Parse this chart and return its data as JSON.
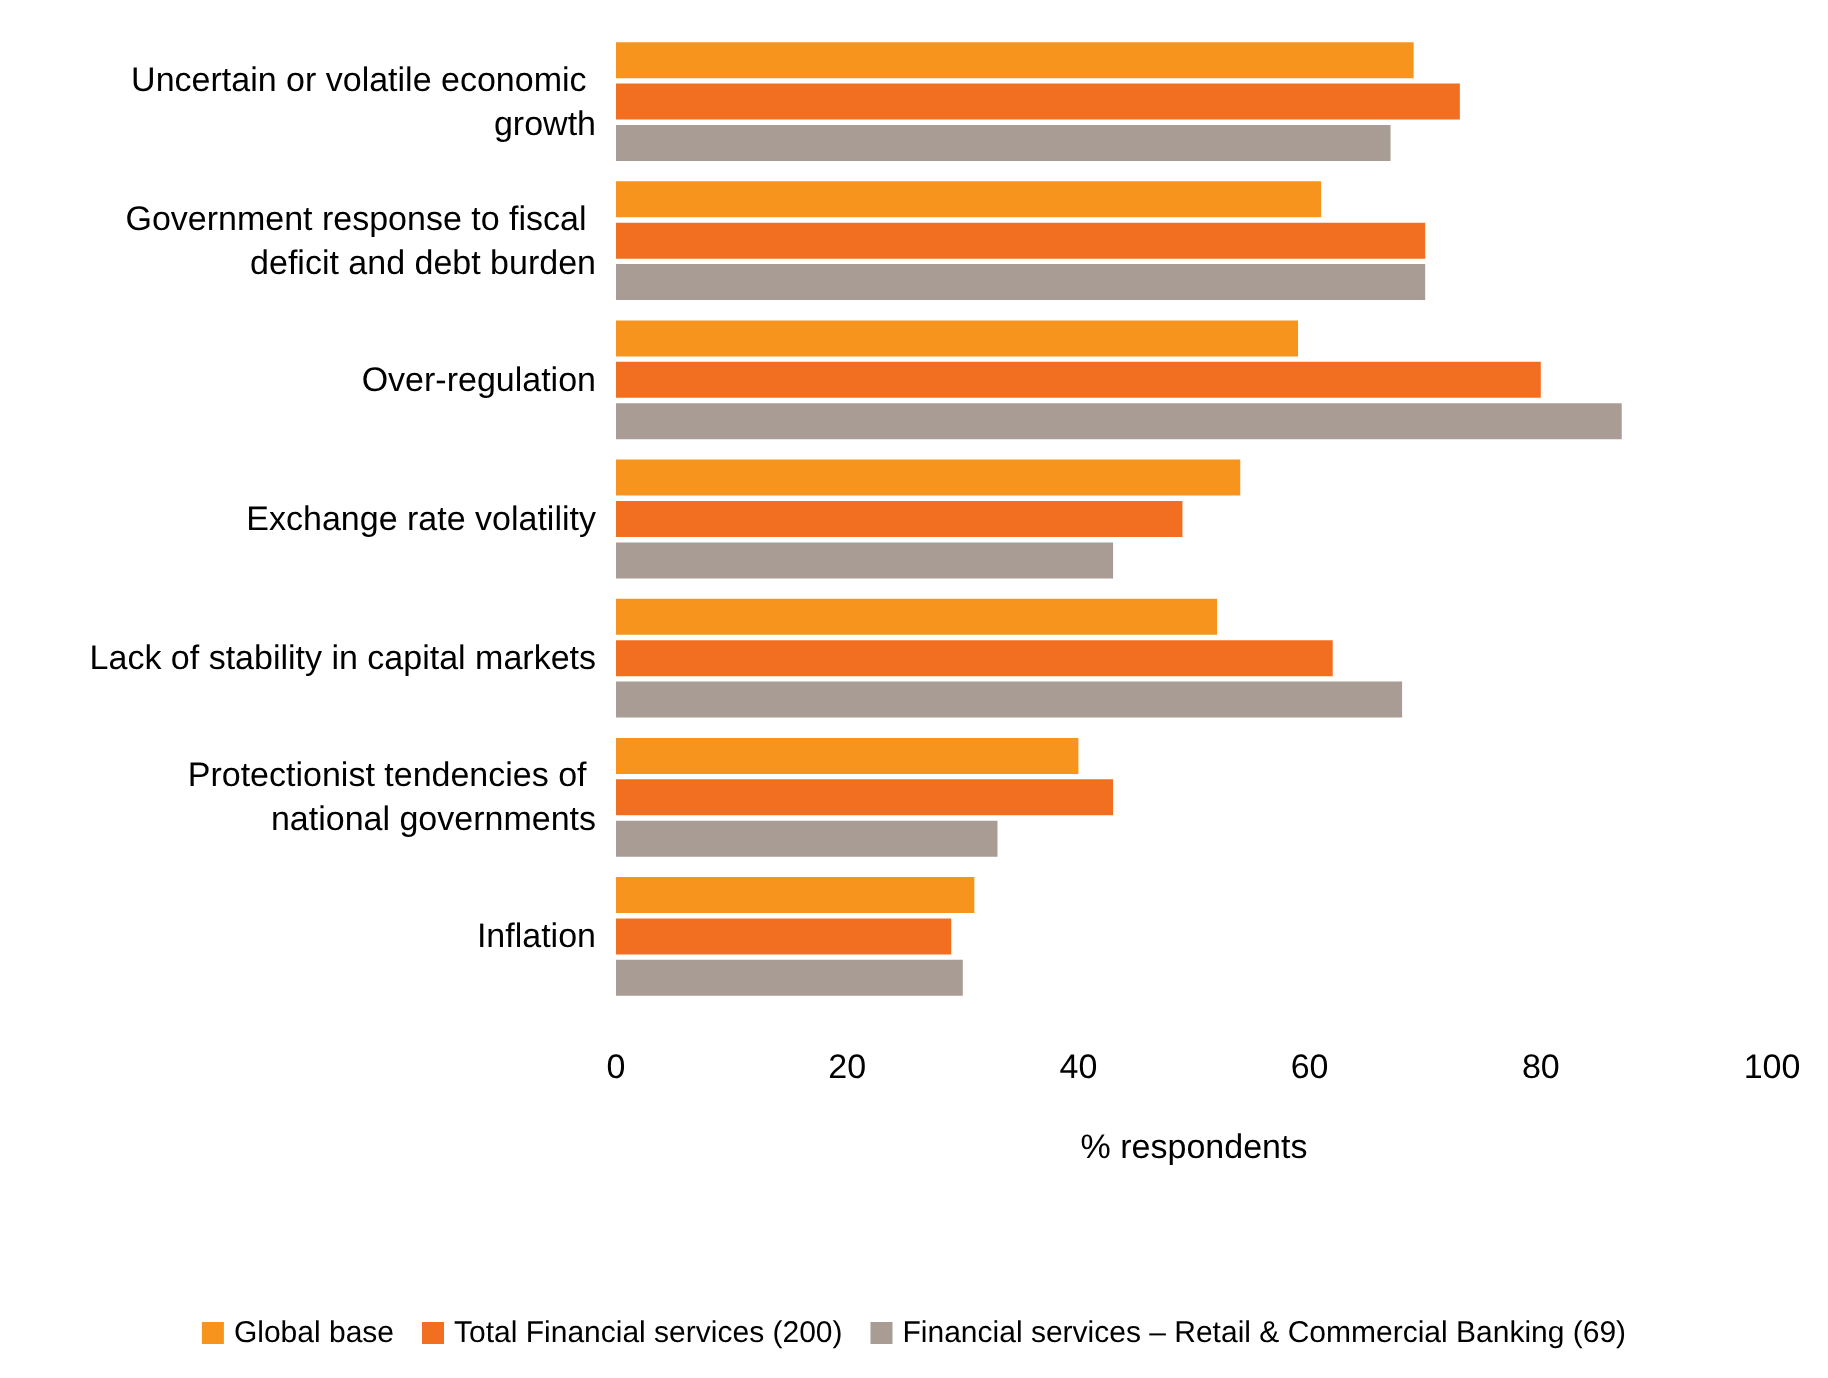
{
  "chart_data": {
    "type": "bar",
    "orientation": "horizontal",
    "xlabel": "% respondents",
    "categories": [
      "Uncertain or volatile economic growth",
      "Government response to fiscal deficit and debt burden",
      "Over-regulation",
      "Exchange rate volatility",
      "Lack of stability in capital markets",
      "Protectionist tendencies of national governments",
      "Inflation"
    ],
    "series": [
      {
        "name": "Global base",
        "color": "#f7941d",
        "values": [
          69,
          61,
          59,
          54,
          52,
          40,
          31
        ]
      },
      {
        "name": "Total Financial services (200)",
        "color": "#f26f21",
        "values": [
          73,
          70,
          80,
          49,
          62,
          43,
          29
        ]
      },
      {
        "name": "Financial services – Retail & Commercial Banking (69)",
        "color": "#a89c94",
        "values": [
          67,
          70,
          87,
          43,
          68,
          33,
          30
        ]
      }
    ],
    "xlim": [
      0,
      100
    ],
    "xticks": [
      0,
      20,
      40,
      60,
      80,
      100
    ],
    "grid": false,
    "legend": "bottom"
  }
}
